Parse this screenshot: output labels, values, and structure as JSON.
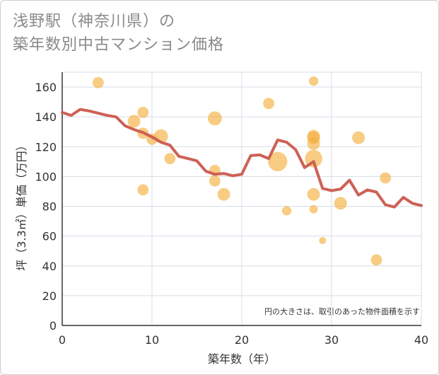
{
  "chart_data": {
    "type": "scatter",
    "title": "浅野駅（神奈川県）の\n築年数別中古マンション価格",
    "xlabel": "築年数（年）",
    "ylabel": "坪（3.3㎡）単価（万円）",
    "xlim": [
      0,
      40
    ],
    "ylim": [
      0,
      170
    ],
    "x_ticks": [
      "0",
      "10",
      "20",
      "30",
      "40"
    ],
    "y_ticks": [
      "0",
      "20",
      "40",
      "60",
      "80",
      "100",
      "120",
      "140",
      "160"
    ],
    "grid": true,
    "note": "円の大きさは、取引のあった物件面積を示す",
    "colors": {
      "bubble": "#f5b041",
      "line": "#cd6155",
      "grid": "#d5dde6",
      "axis": "#333333"
    },
    "bubbles": [
      {
        "x": 4,
        "y": 163,
        "size": 3
      },
      {
        "x": 8,
        "y": 137,
        "size": 4
      },
      {
        "x": 9,
        "y": 143,
        "size": 3
      },
      {
        "x": 9,
        "y": 129,
        "size": 3
      },
      {
        "x": 9,
        "y": 91,
        "size": 3
      },
      {
        "x": 10,
        "y": 125,
        "size": 3
      },
      {
        "x": 11,
        "y": 127,
        "size": 5
      },
      {
        "x": 12,
        "y": 112,
        "size": 3
      },
      {
        "x": 17,
        "y": 139,
        "size": 5
      },
      {
        "x": 17,
        "y": 104,
        "size": 3
      },
      {
        "x": 17,
        "y": 97,
        "size": 3
      },
      {
        "x": 18,
        "y": 88,
        "size": 4
      },
      {
        "x": 23,
        "y": 149,
        "size": 3
      },
      {
        "x": 24,
        "y": 110,
        "size": 10
      },
      {
        "x": 25,
        "y": 77,
        "size": 2
      },
      {
        "x": 28,
        "y": 164,
        "size": 2
      },
      {
        "x": 28,
        "y": 127,
        "size": 4
      },
      {
        "x": 28,
        "y": 126,
        "size": 4
      },
      {
        "x": 28,
        "y": 122,
        "size": 4
      },
      {
        "x": 28,
        "y": 112,
        "size": 8
      },
      {
        "x": 28,
        "y": 88,
        "size": 4
      },
      {
        "x": 28,
        "y": 78,
        "size": 1.5
      },
      {
        "x": 29,
        "y": 57,
        "size": 1
      },
      {
        "x": 31,
        "y": 82,
        "size": 4
      },
      {
        "x": 33,
        "y": 126,
        "size": 4
      },
      {
        "x": 35,
        "y": 44,
        "size": 3
      },
      {
        "x": 36,
        "y": 99,
        "size": 3
      }
    ],
    "line": [
      {
        "x": 0,
        "y": 143
      },
      {
        "x": 1,
        "y": 141
      },
      {
        "x": 2,
        "y": 145
      },
      {
        "x": 3,
        "y": 144
      },
      {
        "x": 4,
        "y": 142.5
      },
      {
        "x": 5,
        "y": 141
      },
      {
        "x": 6,
        "y": 140
      },
      {
        "x": 7,
        "y": 134
      },
      {
        "x": 8,
        "y": 131.5
      },
      {
        "x": 9,
        "y": 129.5
      },
      {
        "x": 10,
        "y": 126.5
      },
      {
        "x": 11,
        "y": 123
      },
      {
        "x": 12,
        "y": 121
      },
      {
        "x": 13,
        "y": 113.5
      },
      {
        "x": 14,
        "y": 112
      },
      {
        "x": 15,
        "y": 110.5
      },
      {
        "x": 16,
        "y": 103.5
      },
      {
        "x": 17,
        "y": 101.5
      },
      {
        "x": 18,
        "y": 102
      },
      {
        "x": 19,
        "y": 100.5
      },
      {
        "x": 20,
        "y": 101.5
      },
      {
        "x": 21,
        "y": 114
      },
      {
        "x": 22,
        "y": 114.5
      },
      {
        "x": 23,
        "y": 112
      },
      {
        "x": 24,
        "y": 124.5
      },
      {
        "x": 25,
        "y": 123
      },
      {
        "x": 26,
        "y": 118
      },
      {
        "x": 27,
        "y": 106
      },
      {
        "x": 28,
        "y": 110
      },
      {
        "x": 29,
        "y": 92
      },
      {
        "x": 30,
        "y": 90.5
      },
      {
        "x": 31,
        "y": 91.5
      },
      {
        "x": 32,
        "y": 97.5
      },
      {
        "x": 33,
        "y": 87.5
      },
      {
        "x": 34,
        "y": 91
      },
      {
        "x": 35,
        "y": 89.5
      },
      {
        "x": 36,
        "y": 81
      },
      {
        "x": 37,
        "y": 79.5
      },
      {
        "x": 38,
        "y": 86
      },
      {
        "x": 39,
        "y": 82
      },
      {
        "x": 40,
        "y": 80.5
      }
    ]
  }
}
